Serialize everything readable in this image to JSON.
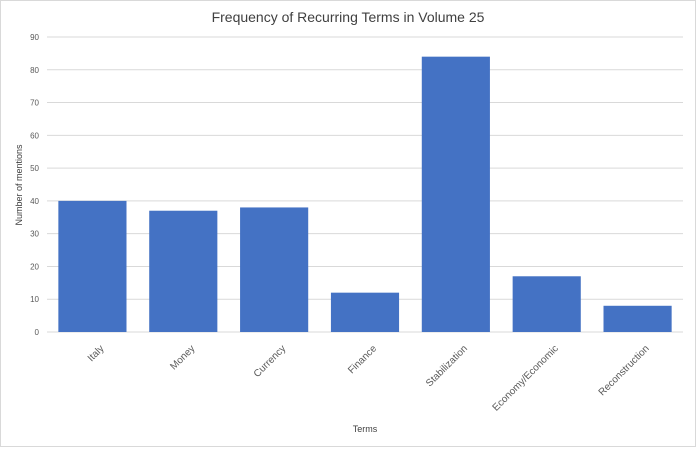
{
  "chart_data": {
    "type": "bar",
    "title": "Frequency of Recurring Terms in Volume 25",
    "xlabel": "Terms",
    "ylabel": "Number of mentions",
    "categories": [
      "Italy",
      "Money",
      "Currency",
      "Finance",
      "Stabilization",
      "Economy/Economic",
      "Reconstruction"
    ],
    "values": [
      40,
      37,
      38,
      12,
      84,
      17,
      8
    ],
    "ylim": [
      0,
      90
    ],
    "yticks": [
      0,
      10,
      20,
      30,
      40,
      50,
      60,
      70,
      80,
      90
    ],
    "grid": true,
    "legend": "none",
    "colors": {
      "bar": "#4472C4",
      "grid": "#d9d9d9",
      "text": "#595959",
      "title": "#404040"
    }
  }
}
